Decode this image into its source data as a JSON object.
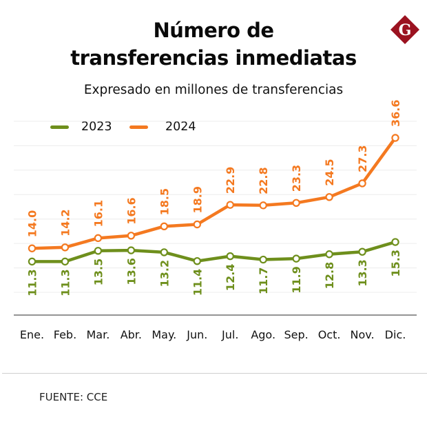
{
  "header": {
    "title_line1": "Número de",
    "title_line2": "transferencias inmediatas",
    "subtitle": "Expresado en millones de transferencias",
    "logo_letter": "G",
    "logo_color": "#9b1220"
  },
  "footer": {
    "source": "FUENTE: CCE"
  },
  "chart_data": {
    "type": "line",
    "title": "Número de transferencias inmediatas",
    "subtitle": "Expresado en millones de transferencias",
    "xlabel": "",
    "ylabel": "",
    "categories": [
      "Ene.",
      "Feb.",
      "Mar.",
      "Abr.",
      "May.",
      "Jun.",
      "Jul.",
      "Ago.",
      "Sep.",
      "Oct.",
      "Nov.",
      "Dic."
    ],
    "series": [
      {
        "name": "2023",
        "color": "#6e8f1c",
        "values": [
          11.3,
          11.3,
          13.5,
          13.6,
          13.2,
          11.4,
          12.4,
          11.7,
          11.9,
          12.8,
          13.3,
          15.3
        ],
        "label_position": "below"
      },
      {
        "name": "2024",
        "color": "#f47920",
        "values": [
          14.0,
          14.2,
          16.1,
          16.6,
          18.5,
          18.9,
          22.9,
          22.8,
          23.3,
          24.5,
          27.3,
          36.6
        ],
        "label_position": "above"
      }
    ],
    "ylim": [
      0,
      40
    ],
    "grid": true,
    "grid_step": 5,
    "yaxis_visible": false,
    "data_labels": true,
    "data_label_format": "0.0",
    "legend_placement": "top-left"
  }
}
